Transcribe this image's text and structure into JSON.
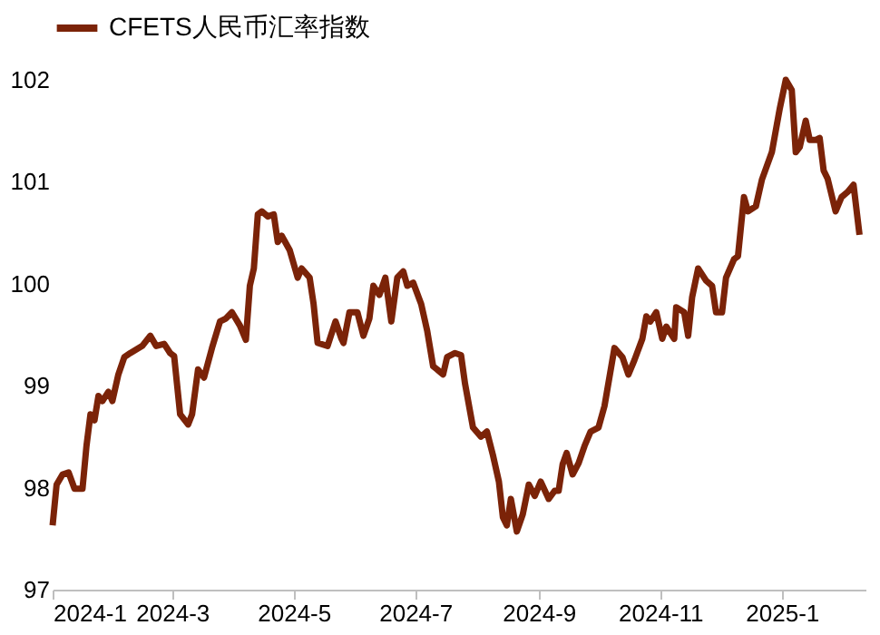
{
  "chart_data": {
    "type": "line",
    "legend": "top",
    "grid": false,
    "marker": "none",
    "line_style": "solid",
    "xlim": [
      "2024-01-01",
      "2025-02-12"
    ],
    "xticks": [
      {
        "value": "2024-01-01",
        "label": "2024-1"
      },
      {
        "value": "2024-03-01",
        "label": "2024-3"
      },
      {
        "value": "2024-05-01",
        "label": "2024-5"
      },
      {
        "value": "2024-07-01",
        "label": "2024-7"
      },
      {
        "value": "2024-09-01",
        "label": "2024-9"
      },
      {
        "value": "2024-11-01",
        "label": "2024-11"
      },
      {
        "value": "2025-01-01",
        "label": "2025-1"
      }
    ],
    "ylim": [
      97,
      102
    ],
    "yticks": [
      97,
      98,
      99,
      100,
      101,
      102
    ],
    "x": [
      "2024-01-01",
      "2024-01-03",
      "2024-01-06",
      "2024-01-09",
      "2024-01-12",
      "2024-01-16",
      "2024-01-18",
      "2024-01-20",
      "2024-01-22",
      "2024-01-24",
      "2024-01-26",
      "2024-01-29",
      "2024-01-31",
      "2024-02-03",
      "2024-02-06",
      "2024-02-09",
      "2024-02-15",
      "2024-02-19",
      "2024-02-22",
      "2024-02-26",
      "2024-02-29",
      "2024-03-02",
      "2024-03-05",
      "2024-03-09",
      "2024-03-11",
      "2024-03-14",
      "2024-03-17",
      "2024-03-21",
      "2024-03-25",
      "2024-03-28",
      "2024-03-31",
      "2024-04-04",
      "2024-04-07",
      "2024-04-09",
      "2024-04-11",
      "2024-04-13",
      "2024-04-15",
      "2024-04-18",
      "2024-04-21",
      "2024-04-23",
      "2024-04-25",
      "2024-04-29",
      "2024-05-03",
      "2024-05-05",
      "2024-05-09",
      "2024-05-11",
      "2024-05-13",
      "2024-05-18",
      "2024-05-22",
      "2024-05-25",
      "2024-05-26",
      "2024-05-29",
      "2024-06-02",
      "2024-06-05",
      "2024-06-08",
      "2024-06-10",
      "2024-06-13",
      "2024-06-16",
      "2024-06-19",
      "2024-06-22",
      "2024-06-25",
      "2024-06-27",
      "2024-06-30",
      "2024-07-04",
      "2024-07-07",
      "2024-07-10",
      "2024-07-12",
      "2024-07-15",
      "2024-07-17",
      "2024-07-21",
      "2024-07-24",
      "2024-07-26",
      "2024-07-30",
      "2024-08-03",
      "2024-08-06",
      "2024-08-09",
      "2024-08-12",
      "2024-08-14",
      "2024-08-16",
      "2024-08-18",
      "2024-08-21",
      "2024-08-24",
      "2024-08-27",
      "2024-08-30",
      "2024-09-02",
      "2024-09-06",
      "2024-09-09",
      "2024-09-11",
      "2024-09-13",
      "2024-09-15",
      "2024-09-18",
      "2024-09-21",
      "2024-09-24",
      "2024-09-27",
      "2024-10-01",
      "2024-10-04",
      "2024-10-09",
      "2024-10-13",
      "2024-10-16",
      "2024-10-19",
      "2024-10-23",
      "2024-10-25",
      "2024-10-27",
      "2024-10-30",
      "2024-11-02",
      "2024-11-04",
      "2024-11-08",
      "2024-11-09",
      "2024-11-13",
      "2024-11-15",
      "2024-11-17",
      "2024-11-20",
      "2024-11-24",
      "2024-11-27",
      "2024-11-29",
      "2024-12-02",
      "2024-12-04",
      "2024-12-08",
      "2024-12-10",
      "2024-12-13",
      "2024-12-15",
      "2024-12-19",
      "2024-12-22",
      "2024-12-27",
      "2024-12-31",
      "2025-01-03",
      "2025-01-06",
      "2025-01-08",
      "2025-01-10",
      "2025-01-13",
      "2025-01-15",
      "2025-01-18",
      "2025-01-20",
      "2025-01-22",
      "2025-01-24",
      "2025-01-28",
      "2025-01-31",
      "2025-02-03",
      "2025-02-06",
      "2025-02-09"
    ],
    "series": [
      {
        "name": "CFETS人民币汇率指数",
        "color": "#7b2308",
        "values": [
          97.63,
          98.03,
          98.13,
          98.15,
          97.99,
          97.99,
          98.41,
          98.72,
          98.66,
          98.9,
          98.85,
          98.94,
          98.85,
          99.11,
          99.28,
          99.32,
          99.39,
          99.49,
          99.39,
          99.41,
          99.32,
          99.29,
          98.72,
          98.62,
          98.72,
          99.16,
          99.08,
          99.37,
          99.63,
          99.66,
          99.72,
          99.59,
          99.45,
          99.98,
          100.15,
          100.68,
          100.71,
          100.66,
          100.68,
          100.41,
          100.47,
          100.33,
          100.06,
          100.15,
          100.06,
          99.8,
          99.42,
          99.39,
          99.63,
          99.46,
          99.42,
          99.72,
          99.72,
          99.49,
          99.66,
          99.98,
          99.89,
          100.06,
          99.63,
          100.06,
          100.12,
          99.98,
          100.01,
          99.8,
          99.54,
          99.19,
          99.16,
          99.11,
          99.28,
          99.32,
          99.3,
          99.02,
          98.59,
          98.5,
          98.55,
          98.32,
          98.06,
          97.71,
          97.63,
          97.89,
          97.57,
          97.74,
          98.03,
          97.92,
          98.06,
          97.89,
          97.97,
          97.97,
          98.23,
          98.34,
          98.13,
          98.24,
          98.41,
          98.55,
          98.59,
          98.8,
          99.37,
          99.28,
          99.11,
          99.25,
          99.46,
          99.68,
          99.63,
          99.72,
          99.46,
          99.58,
          99.46,
          99.77,
          99.72,
          99.49,
          99.87,
          100.15,
          100.03,
          99.98,
          99.72,
          99.72,
          100.06,
          100.24,
          100.27,
          100.85,
          100.71,
          100.76,
          101.02,
          101.29,
          101.72,
          102.0,
          101.9,
          101.29,
          101.34,
          101.6,
          101.41,
          101.41,
          101.43,
          101.11,
          101.03,
          100.71,
          100.85,
          100.9,
          100.97,
          100.48
        ]
      }
    ]
  }
}
